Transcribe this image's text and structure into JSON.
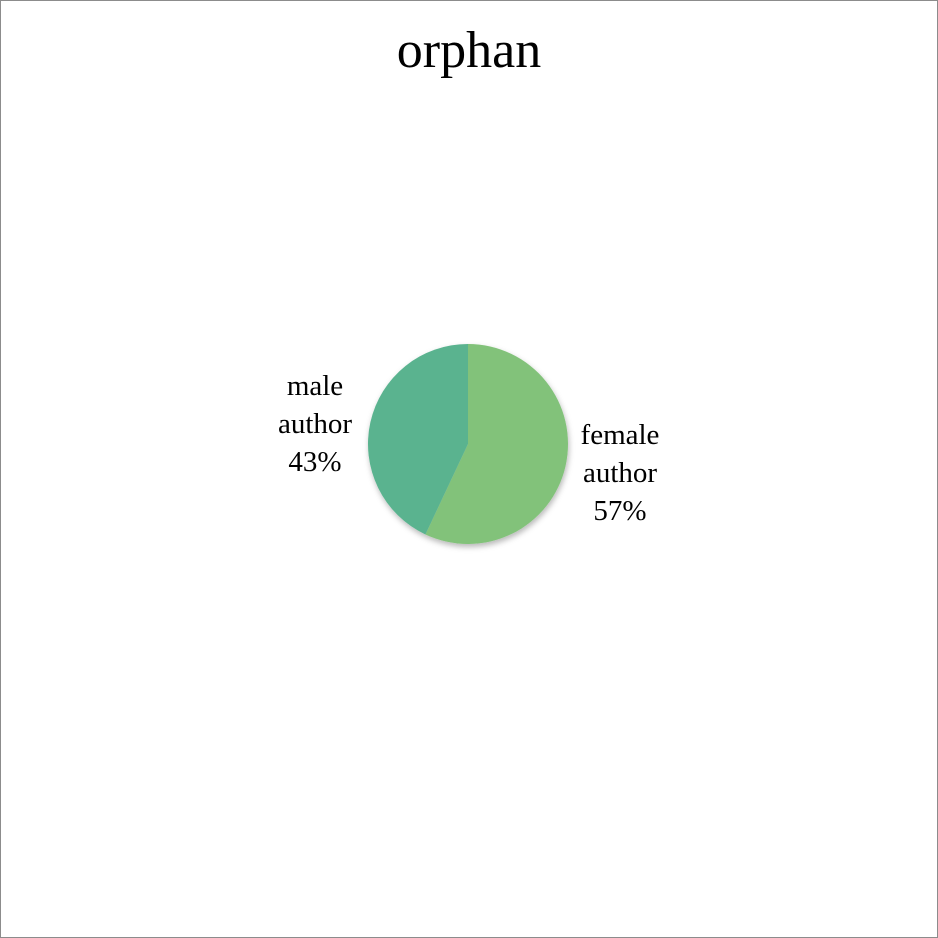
{
  "chart_data": {
    "type": "pie",
    "title": "orphan",
    "slices": [
      {
        "label": "female author",
        "label_lines": [
          "female",
          "author"
        ],
        "value": 57,
        "value_label": "57%",
        "color": "#82c27a"
      },
      {
        "label": "male author",
        "label_lines": [
          "male",
          "author"
        ],
        "value": 43,
        "value_label": "43%",
        "color": "#5ab38f"
      }
    ],
    "start": "12 o'clock",
    "direction": "clockwise",
    "legend": "none"
  }
}
